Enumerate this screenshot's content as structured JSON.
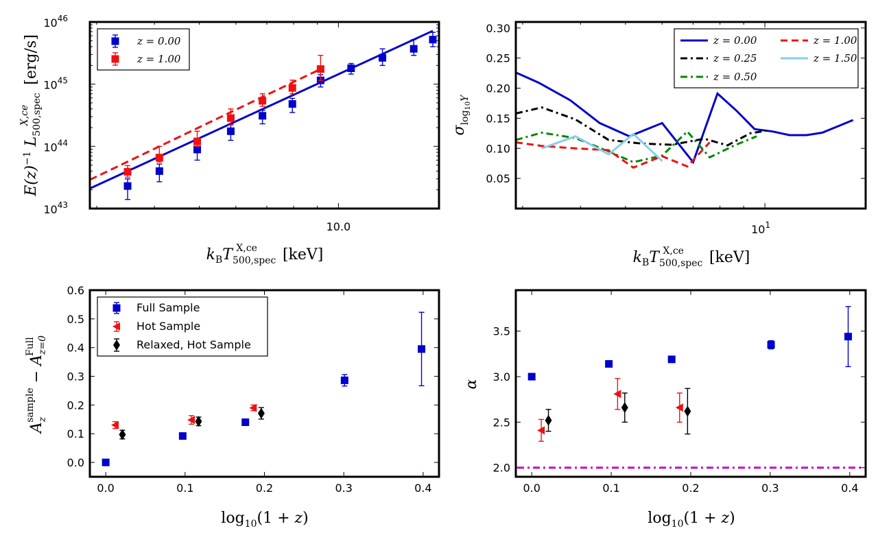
{
  "colors": {
    "blue": "#0000cc",
    "red": "#ee1111",
    "black": "#000000",
    "green": "#008800",
    "lightblue": "#87ceeb",
    "magenta": "#cc00cc"
  },
  "chart_data": [
    {
      "id": "luminosity",
      "type": "scatter",
      "x_scale": "log",
      "y_scale": "log",
      "xlim": [
        2.9,
        16.5
      ],
      "ylim": [
        1e+43,
        1e+46
      ],
      "xlabel": "k_B T^{X,ce}_{500,spec} [keV]",
      "ylabel": "E(z)^{-1} L^{X,ce}_{500,spec} [erg/s]",
      "x_ticks": [
        {
          "v": 10,
          "label": "10.0"
        }
      ],
      "y_ticks": [
        {
          "v": 1e+43,
          "base": "10",
          "exp": "43"
        },
        {
          "v": 1e+44,
          "base": "10",
          "exp": "44"
        },
        {
          "v": 1e+45,
          "base": "10",
          "exp": "45"
        },
        {
          "v": 1e+46,
          "base": "10",
          "exp": "46"
        }
      ],
      "legend": {
        "position": "top-left",
        "entries": [
          "z = 0.00",
          "z = 1.00"
        ]
      },
      "series": [
        {
          "name": "z = 0.00",
          "color_key": "blue",
          "x": [
            3.5,
            4.1,
            4.95,
            5.85,
            6.85,
            7.95,
            9.15,
            10.65,
            12.45,
            14.55,
            16.0
          ],
          "y": [
            2.3e+43,
            4e+43,
            8.9e+43,
            1.75e+44,
            3.1e+44,
            4.8e+44,
            1.15e+45,
            1.8e+45,
            2.65e+45,
            3.7e+45,
            5.2e+45
          ],
          "err_low": [
            1.4e+43,
            2.7e+43,
            6e+43,
            1.25e+44,
            2.3e+44,
            3.5e+44,
            9e+44,
            1.45e+45,
            2e+45,
            2.9e+45,
            4e+45
          ],
          "err_high": [
            3e+43,
            5.2e+43,
            1.18e+44,
            2.3e+44,
            3.8e+44,
            5.9e+44,
            1.42e+45,
            2.15e+45,
            3.7e+45,
            5.2e+45,
            6.8e+45
          ],
          "fit": {
            "x": [
              2.9,
              16.0
            ],
            "y": [
              2.1e+43,
              7.2e+45
            ]
          }
        },
        {
          "name": "z = 1.00",
          "color_key": "red",
          "x": [
            3.5,
            4.1,
            4.95,
            5.85,
            6.85,
            7.95,
            9.15
          ],
          "y": [
            3.9e+43,
            6.6e+43,
            1.2e+44,
            2.85e+44,
            5.4e+44,
            8.7e+44,
            1.75e+45
          ],
          "err_low": [
            3.2e+43,
            5.6e+43,
            1e+44,
            2.2e+44,
            4.4e+44,
            7e+44,
            1.15e+45
          ],
          "err_high": [
            4.9e+43,
            1e+44,
            1.75e+44,
            4e+44,
            7e+44,
            1.16e+45,
            2.9e+45
          ],
          "fit": {
            "x": [
              2.9,
              9.15
            ],
            "y": [
              2.9e+43,
              1.75e+45
            ]
          }
        }
      ]
    },
    {
      "id": "scatter",
      "type": "line",
      "x_scale": "log",
      "y_scale": "linear",
      "xlim": [
        2.9,
        16.5
      ],
      "ylim": [
        0.0,
        0.31
      ],
      "xlabel": "k_B T^{X,ce}_{500,spec} [keV]",
      "ylabel": "σ_{log10 Y}",
      "x_ticks": [
        {
          "v": 10,
          "base": "10",
          "exp": "1"
        }
      ],
      "y_ticks": [
        0.05,
        0.1,
        0.15,
        0.2,
        0.25,
        0.3
      ],
      "y_tick_labels": [
        "0.05",
        "0.10",
        "0.15",
        "0.20",
        "0.25",
        "0.30"
      ],
      "legend": {
        "position": "top-right",
        "entries": [
          "z = 0.00",
          "z = 0.25",
          "z = 0.50",
          "z = 1.00",
          "z = 1.50"
        ]
      },
      "series": [
        {
          "name": "z = 0.00",
          "color_key": "blue",
          "dash": "solid",
          "x": [
            2.9,
            3.25,
            3.8,
            4.4,
            5.1,
            6.0,
            7.0,
            7.9,
            8.7,
            9.5,
            10.4,
            11.3,
            12.3,
            13.3,
            15.5
          ],
          "y": [
            0.226,
            0.209,
            0.18,
            0.142,
            0.12,
            0.142,
            0.077,
            0.191,
            0.162,
            0.132,
            0.128,
            0.122,
            0.122,
            0.126,
            0.147
          ]
        },
        {
          "name": "z = 0.25",
          "color_key": "black",
          "dash": "dashdot",
          "x": [
            2.9,
            3.3,
            3.9,
            4.6,
            5.4,
            6.3,
            7.4,
            8.3,
            9.3,
            10.2
          ],
          "y": [
            0.158,
            0.168,
            0.148,
            0.114,
            0.108,
            0.106,
            0.116,
            0.105,
            0.125,
            0.13
          ]
        },
        {
          "name": "z = 0.50",
          "color_key": "green",
          "dash": "dashdot",
          "x": [
            2.9,
            3.3,
            3.9,
            4.6,
            5.2,
            6.0,
            6.8,
            7.6,
            8.6,
            9.6
          ],
          "y": [
            0.114,
            0.126,
            0.117,
            0.095,
            0.077,
            0.088,
            0.128,
            0.085,
            0.105,
            0.12
          ]
        },
        {
          "name": "z = 1.00",
          "color_key": "red",
          "dash": "dashed",
          "x": [
            2.9,
            3.3,
            3.9,
            4.6,
            5.2,
            6.0,
            6.8,
            7.6
          ],
          "y": [
            0.11,
            0.104,
            0.1,
            0.097,
            0.068,
            0.087,
            0.07,
            0.11
          ]
        },
        {
          "name": "z = 1.50",
          "color_key": "lightblue",
          "dash": "solid",
          "x": [
            3.3,
            3.9,
            4.6,
            5.2,
            6.0
          ],
          "y": [
            0.1,
            0.12,
            0.09,
            0.124,
            0.079
          ]
        }
      ]
    },
    {
      "id": "normalization",
      "type": "scatter",
      "xlim": [
        -0.02,
        0.42
      ],
      "ylim": [
        -0.05,
        0.6
      ],
      "xlabel": "log10(1 + z)",
      "ylabel": "A_z^sample − A_{z=0}^Full",
      "x_ticks": [
        0.0,
        0.1,
        0.2,
        0.3,
        0.4
      ],
      "x_tick_labels": [
        "0.0",
        "0.1",
        "0.2",
        "0.3",
        "0.4"
      ],
      "y_ticks": [
        0.0,
        0.1,
        0.2,
        0.3,
        0.4,
        0.5,
        0.6
      ],
      "y_tick_labels": [
        "0.0",
        "0.1",
        "0.2",
        "0.3",
        "0.4",
        "0.5",
        "0.6"
      ],
      "legend": {
        "position": "top-left",
        "entries": [
          "Full Sample",
          "Hot Sample",
          "Relaxed, Hot Sample"
        ]
      },
      "series": [
        {
          "name": "Full Sample",
          "color_key": "blue",
          "marker": "square",
          "x": [
            0.0,
            0.097,
            0.176,
            0.301,
            0.398
          ],
          "y": [
            0.0,
            0.092,
            0.14,
            0.286,
            0.395
          ],
          "err": [
            0.01,
            0.0,
            0.0,
            0.02,
            0.128
          ]
        },
        {
          "name": "Hot Sample",
          "color_key": "red",
          "marker": "triangle-left",
          "x": [
            0.012,
            0.108,
            0.186
          ],
          "y": [
            0.13,
            0.148,
            0.19
          ],
          "err": [
            0.012,
            0.015,
            0.01
          ]
        },
        {
          "name": "Relaxed, Hot Sample",
          "color_key": "black",
          "marker": "diamond",
          "x": [
            0.021,
            0.117,
            0.196
          ],
          "y": [
            0.097,
            0.143,
            0.171
          ],
          "err": [
            0.015,
            0.015,
            0.02
          ]
        }
      ]
    },
    {
      "id": "slope",
      "type": "scatter",
      "xlim": [
        -0.02,
        0.42
      ],
      "ylim": [
        1.9,
        3.95
      ],
      "xlabel": "log10(1 + z)",
      "ylabel": "α",
      "x_ticks": [
        0.0,
        0.1,
        0.2,
        0.3,
        0.4
      ],
      "x_tick_labels": [
        "0.0",
        "0.1",
        "0.2",
        "0.3",
        "0.4"
      ],
      "y_ticks": [
        2.0,
        2.5,
        3.0,
        3.5
      ],
      "y_tick_labels": [
        "2.0",
        "2.5",
        "3.0",
        "3.5"
      ],
      "reference_line": {
        "y": 2.0,
        "color_key": "magenta",
        "style": "dashdot"
      },
      "series": [
        {
          "name": "Full Sample",
          "color_key": "blue",
          "marker": "square",
          "x": [
            0.0,
            0.097,
            0.176,
            0.301,
            0.398
          ],
          "y": [
            3.0,
            3.14,
            3.19,
            3.35,
            3.44
          ],
          "err": [
            0.0,
            0.0,
            0.0,
            0.045,
            0.33
          ]
        },
        {
          "name": "Hot Sample",
          "color_key": "red",
          "marker": "triangle-left",
          "x": [
            0.012,
            0.108,
            0.186
          ],
          "y": [
            2.41,
            2.81,
            2.66
          ],
          "err": [
            0.12,
            0.17,
            0.16
          ]
        },
        {
          "name": "Relaxed, Hot Sample",
          "color_key": "black",
          "marker": "diamond",
          "x": [
            0.021,
            0.117,
            0.196
          ],
          "y": [
            2.52,
            2.66,
            2.62
          ],
          "err": [
            0.12,
            0.16,
            0.25
          ]
        }
      ]
    }
  ]
}
